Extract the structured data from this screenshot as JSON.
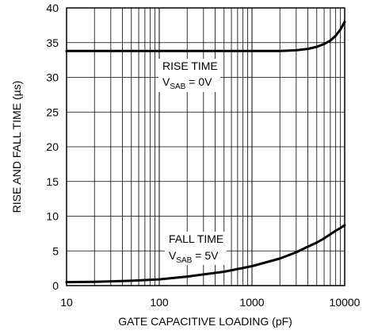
{
  "chart_data": {
    "type": "line",
    "xlabel": "GATE CAPACITIVE LOADING (pF)",
    "ylabel": "RISE AND FALL TIME (µs)",
    "x_scale": "log",
    "xlim": [
      10,
      10000
    ],
    "ylim": [
      0,
      40
    ],
    "x_ticks": [
      10,
      100,
      1000,
      10000
    ],
    "x_tick_labels": [
      "10",
      "100",
      "1000",
      "10000"
    ],
    "y_ticks": [
      0,
      5,
      10,
      15,
      20,
      25,
      30,
      35,
      40
    ],
    "y_tick_labels": [
      "0",
      "5",
      "10",
      "15",
      "20",
      "25",
      "30",
      "35",
      "40"
    ],
    "grid": true,
    "series": [
      {
        "name": "RISE TIME",
        "x": [
          10,
          20,
          50,
          100,
          200,
          500,
          1000,
          2000,
          3000,
          4000,
          5000,
          6000,
          7000,
          8000,
          9000,
          10000
        ],
        "y": [
          33.8,
          33.8,
          33.8,
          33.8,
          33.8,
          33.8,
          33.8,
          33.8,
          33.9,
          34.1,
          34.4,
          34.8,
          35.3,
          36.0,
          36.9,
          38.0
        ]
      },
      {
        "name": "FALL TIME",
        "x": [
          10,
          20,
          50,
          100,
          200,
          500,
          1000,
          2000,
          3000,
          4000,
          5000,
          6000,
          7000,
          8000,
          9000,
          10000
        ],
        "y": [
          0.5,
          0.55,
          0.7,
          0.9,
          1.3,
          2.0,
          2.8,
          3.9,
          4.8,
          5.6,
          6.2,
          6.8,
          7.4,
          7.9,
          8.3,
          8.7
        ]
      }
    ],
    "annotations": [
      {
        "line1": "RISE TIME",
        "line2_main": "V",
        "line2_sub": "SAB",
        "line2_rest": " = 0V"
      },
      {
        "line1": "FALL TIME",
        "line2_main": "V",
        "line2_sub": "SAB",
        "line2_rest": " = 5V"
      }
    ]
  }
}
